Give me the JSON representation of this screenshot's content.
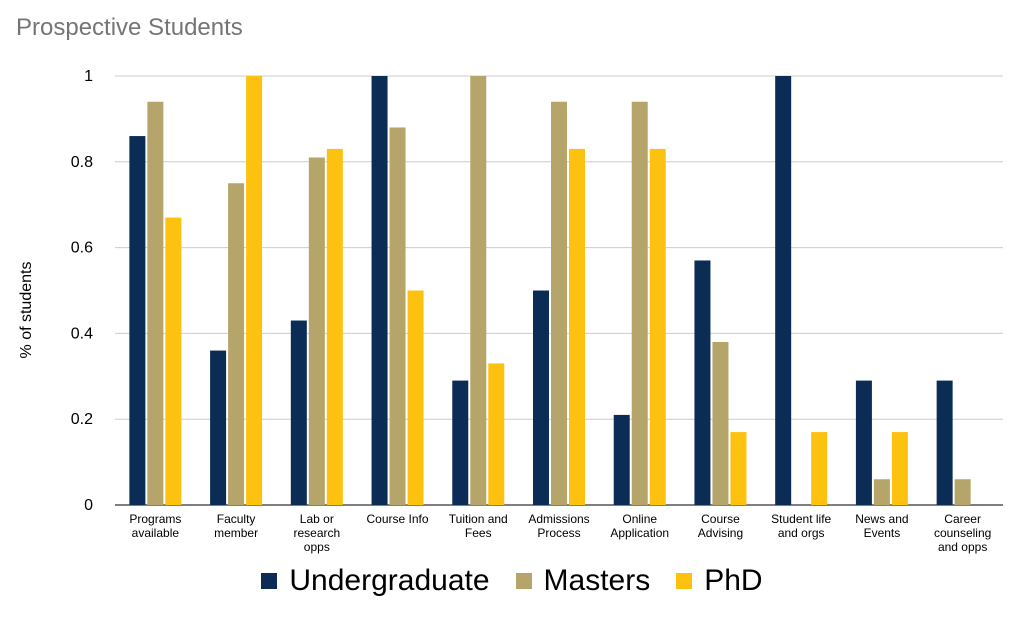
{
  "chart_data": {
    "type": "bar",
    "title": "Prospective Students",
    "xlabel": "",
    "ylabel": "% of students",
    "ylim": [
      0,
      1
    ],
    "yticks": [
      "0",
      "0.2",
      "0.4",
      "0.6",
      "0.8",
      "1"
    ],
    "yticks_values": [
      0,
      0.2,
      0.4,
      0.6,
      0.8,
      1
    ],
    "grid": true,
    "legend_position": "bottom",
    "categories": [
      [
        "Programs",
        "available"
      ],
      [
        "Faculty",
        "member"
      ],
      [
        "Lab or",
        "research",
        "opps"
      ],
      [
        "Course Info"
      ],
      [
        "Tuition and",
        "Fees"
      ],
      [
        "Admissions",
        "Process"
      ],
      [
        "Online",
        "Application"
      ],
      [
        "Course",
        "Advising"
      ],
      [
        "Student life",
        "and orgs"
      ],
      [
        "News and",
        "Events"
      ],
      [
        "Career",
        "counseling",
        "and opps"
      ]
    ],
    "series": [
      {
        "name": "Undergraduate",
        "color": "#0b2d55",
        "values": [
          0.86,
          0.36,
          0.43,
          1.0,
          0.29,
          0.5,
          0.21,
          0.57,
          1.0,
          0.29,
          0.29
        ]
      },
      {
        "name": "Masters",
        "color": "#b5a56b",
        "values": [
          0.94,
          0.75,
          0.81,
          0.88,
          1.0,
          0.94,
          0.94,
          0.38,
          0,
          0.06,
          0.06
        ]
      },
      {
        "name": "PhD",
        "color": "#fcc20f",
        "values": [
          0.67,
          1.0,
          0.83,
          0.5,
          0.33,
          0.83,
          0.83,
          0.17,
          0.17,
          0.17,
          0
        ]
      }
    ]
  }
}
